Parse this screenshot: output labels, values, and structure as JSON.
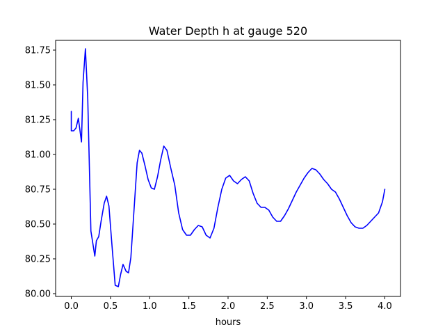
{
  "chart_data": {
    "type": "line",
    "title": "Water Depth h at gauge 520",
    "xlabel": "hours",
    "ylabel": "",
    "xlim": [
      -0.2,
      4.2
    ],
    "ylim": [
      79.98,
      81.82
    ],
    "xticks": [
      0.0,
      0.5,
      1.0,
      1.5,
      2.0,
      2.5,
      3.0,
      3.5,
      4.0
    ],
    "xtick_labels": [
      "0.0",
      "0.5",
      "1.0",
      "1.5",
      "2.0",
      "2.5",
      "3.0",
      "3.5",
      "4.0"
    ],
    "yticks": [
      80.0,
      80.25,
      80.5,
      80.75,
      81.0,
      81.25,
      81.5,
      81.75
    ],
    "ytick_labels": [
      "80.00",
      "80.25",
      "80.50",
      "80.75",
      "81.00",
      "81.25",
      "81.50",
      "81.75"
    ],
    "grid": false,
    "series": [
      {
        "color": "#0000ff",
        "x": [
          0.0,
          0.0,
          0.03,
          0.06,
          0.09,
          0.13,
          0.15,
          0.18,
          0.21,
          0.25,
          0.3,
          0.32,
          0.35,
          0.38,
          0.42,
          0.45,
          0.48,
          0.52,
          0.56,
          0.6,
          0.63,
          0.66,
          0.7,
          0.73,
          0.76,
          0.8,
          0.84,
          0.87,
          0.9,
          0.94,
          0.98,
          1.02,
          1.06,
          1.1,
          1.14,
          1.18,
          1.22,
          1.27,
          1.32,
          1.37,
          1.42,
          1.47,
          1.52,
          1.57,
          1.62,
          1.67,
          1.72,
          1.77,
          1.82,
          1.87,
          1.92,
          1.97,
          2.02,
          2.07,
          2.12,
          2.17,
          2.22,
          2.27,
          2.32,
          2.37,
          2.42,
          2.47,
          2.52,
          2.57,
          2.62,
          2.67,
          2.72,
          2.77,
          2.82,
          2.87,
          2.92,
          2.97,
          3.02,
          3.07,
          3.12,
          3.17,
          3.22,
          3.27,
          3.32,
          3.37,
          3.42,
          3.47,
          3.52,
          3.57,
          3.62,
          3.67,
          3.72,
          3.77,
          3.82,
          3.87,
          3.92,
          3.97,
          4.0
        ],
        "y": [
          81.31,
          81.17,
          81.17,
          81.19,
          81.26,
          81.09,
          81.52,
          81.76,
          81.4,
          80.45,
          80.27,
          80.38,
          80.41,
          80.52,
          80.65,
          80.7,
          80.63,
          80.34,
          80.06,
          80.05,
          80.14,
          80.21,
          80.16,
          80.15,
          80.26,
          80.6,
          80.94,
          81.03,
          81.01,
          80.92,
          80.82,
          80.76,
          80.75,
          80.84,
          80.96,
          81.06,
          81.03,
          80.9,
          80.78,
          80.58,
          80.46,
          80.42,
          80.42,
          80.46,
          80.49,
          80.48,
          80.42,
          80.4,
          80.47,
          80.62,
          80.75,
          80.83,
          80.85,
          80.81,
          80.79,
          80.82,
          80.84,
          80.81,
          80.72,
          80.65,
          80.62,
          80.62,
          80.6,
          80.55,
          80.52,
          80.52,
          80.56,
          80.61,
          80.67,
          80.73,
          80.78,
          80.83,
          80.87,
          80.9,
          80.89,
          80.86,
          80.82,
          80.79,
          80.75,
          80.73,
          80.68,
          80.62,
          80.56,
          80.51,
          80.48,
          80.47,
          80.47,
          80.49,
          80.52,
          80.55,
          80.58,
          80.66,
          80.75
        ]
      }
    ]
  }
}
